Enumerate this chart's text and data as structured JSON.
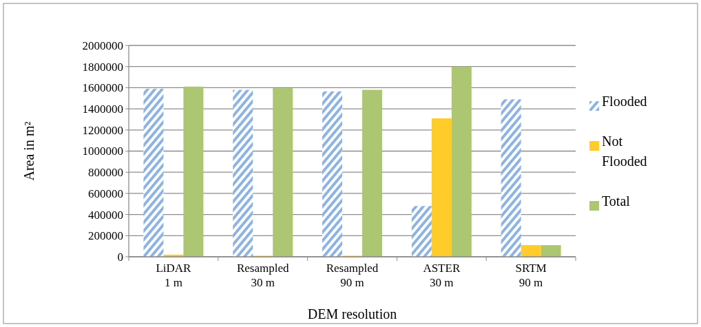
{
  "chart_data": {
    "type": "bar",
    "xlabel": "DEM resolution",
    "ylabel": "Area in m²",
    "categories": [
      "LiDAR\n1 m",
      "Resampled\n30 m",
      "Resampled\n90 m",
      "ASTER\n30 m",
      "SRTM\n90 m"
    ],
    "series": [
      {
        "name": "Flooded",
        "color": "#8db3e2",
        "values": [
          1590000,
          1580000,
          1565000,
          480000,
          1490000
        ]
      },
      {
        "name": "Not Flooded",
        "color": "#ffcc29",
        "values": [
          20000,
          10000,
          10000,
          1310000,
          110000
        ]
      },
      {
        "name": "Total",
        "color": "#acc672",
        "values": [
          1610000,
          1595000,
          1580000,
          1800000,
          110000
        ]
      }
    ],
    "ylim": [
      0,
      2000000
    ],
    "yticks": [
      0,
      200000,
      400000,
      600000,
      800000,
      1000000,
      1200000,
      1400000,
      1600000,
      1800000,
      2000000
    ],
    "grid": "y",
    "legend": "right"
  }
}
